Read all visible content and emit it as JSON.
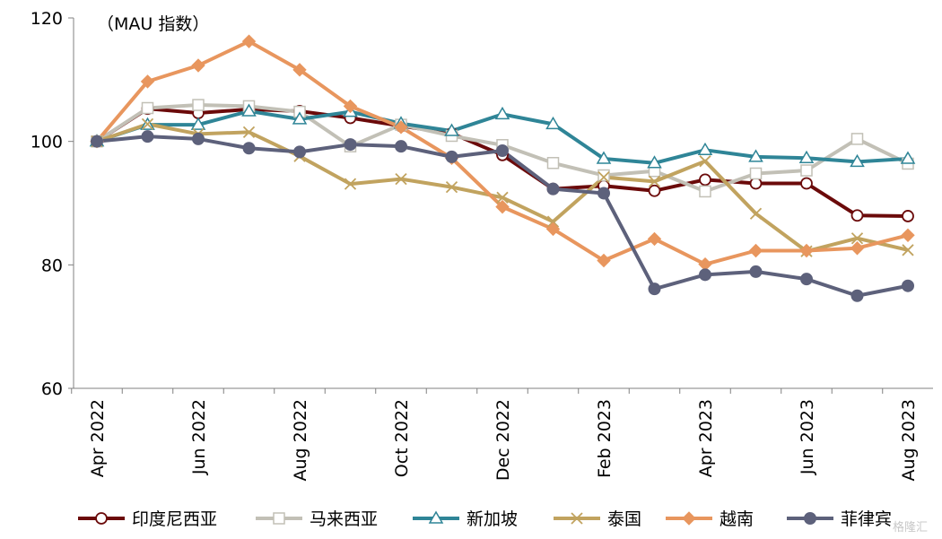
{
  "chart_data": {
    "type": "line",
    "title": "",
    "unit_label": "（MAU 指数）",
    "ylim": [
      60,
      120
    ],
    "y_ticks": [
      60,
      80,
      100,
      120
    ],
    "x_tick_labels": [
      "Apr 2022",
      "Jun 2022",
      "Aug 2022",
      "Oct 2022",
      "Dec 2022",
      "Feb 2023",
      "Apr 2023",
      "Jun 2023",
      "Aug 2023"
    ],
    "x": [
      "Apr 2022",
      "May 2022",
      "Jun 2022",
      "Jul 2022",
      "Aug 2022",
      "Sep 2022",
      "Oct 2022",
      "Nov 2022",
      "Dec 2022",
      "Jan 2023",
      "Feb 2023",
      "Mar 2023",
      "Apr 2023",
      "May 2023",
      "Jun 2023",
      "Jul 2023",
      "Aug 2023"
    ],
    "legend_position": "bottom",
    "grid": false,
    "series": [
      {
        "name": "印度尼西亚",
        "color": "#6b0a0a",
        "marker": "circle-open",
        "values": [
          100,
          105.3,
          104.6,
          105.2,
          104.9,
          103.8,
          102.5,
          101.3,
          97.8,
          92.3,
          92.8,
          92,
          93.8,
          93.2,
          93.2,
          88,
          87.9
        ]
      },
      {
        "name": "马来西亚",
        "color": "#c2c0b6",
        "marker": "square-open",
        "values": [
          100,
          105.4,
          105.9,
          105.7,
          104.8,
          99.2,
          102.7,
          100.9,
          99.4,
          96.5,
          94.5,
          95.2,
          91.9,
          94.8,
          95.3,
          100.4,
          96.4
        ]
      },
      {
        "name": "新加坡",
        "color": "#2f8597",
        "marker": "triangle-open",
        "values": [
          100,
          102.7,
          102.7,
          104.9,
          103.6,
          104.8,
          102.9,
          101.7,
          104.4,
          102.8,
          97.2,
          96.5,
          98.6,
          97.5,
          97.3,
          96.7,
          97.2
        ]
      },
      {
        "name": "泰国",
        "color": "#c1a35f",
        "marker": "x",
        "values": [
          100,
          102.8,
          101.2,
          101.5,
          97.6,
          93.1,
          93.9,
          92.6,
          90.9,
          87,
          94.2,
          93.5,
          96.8,
          88.3,
          82.2,
          84.3,
          82.4
        ]
      },
      {
        "name": "越南",
        "color": "#e8965e",
        "marker": "diamond",
        "values": [
          100,
          109.7,
          112.3,
          116.2,
          111.6,
          105.7,
          102.3,
          97.3,
          89.4,
          85.8,
          80.7,
          84.2,
          80.1,
          82.3,
          82.3,
          82.7,
          84.8
        ]
      },
      {
        "name": "菲律宾",
        "color": "#5d617b",
        "marker": "circle",
        "values": [
          100,
          100.8,
          100.4,
          98.9,
          98.3,
          99.5,
          99.2,
          97.5,
          98.5,
          92.3,
          91.6,
          76.1,
          78.4,
          78.9,
          77.7,
          75,
          76.6
        ]
      }
    ]
  },
  "watermark": "格隆汇"
}
